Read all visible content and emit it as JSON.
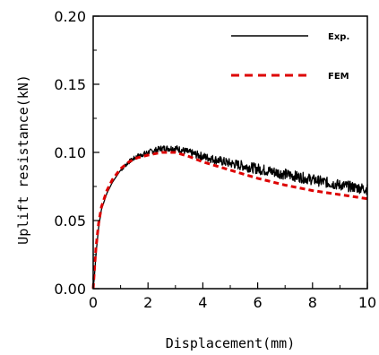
{
  "chart_data": {
    "type": "line",
    "xlabel": "Displacement(mm)",
    "ylabel": "Uplift resistance(kN)",
    "xlim": [
      0,
      10
    ],
    "ylim": [
      0,
      0.2
    ],
    "xticks": [
      0,
      2,
      4,
      6,
      8,
      10
    ],
    "xtick_labels": [
      "0",
      "2",
      "4",
      "6",
      "8",
      "10"
    ],
    "yticks": [
      0,
      0.05,
      0.1,
      0.15,
      0.2
    ],
    "ytick_labels": [
      "0.00",
      "0.05",
      "0.10",
      "0.15",
      "0.20"
    ],
    "grid": false,
    "legend": "top-right",
    "series": [
      {
        "name": "Exp.",
        "color": "#000000",
        "style": "solid",
        "noisy": true,
        "x": [
          0,
          0.05,
          0.1,
          0.2,
          0.3,
          0.5,
          0.7,
          1.0,
          1.3,
          1.6,
          2.0,
          2.5,
          3.0,
          3.5,
          4.0,
          5.0,
          6.0,
          7.0,
          8.0,
          9.0,
          10.0
        ],
        "y": [
          0,
          0.01,
          0.025,
          0.045,
          0.058,
          0.07,
          0.078,
          0.087,
          0.093,
          0.097,
          0.1,
          0.103,
          0.103,
          0.1,
          0.097,
          0.092,
          0.088,
          0.084,
          0.08,
          0.076,
          0.073
        ]
      },
      {
        "name": "FEM",
        "color": "#dd0000",
        "style": "dashed",
        "noisy": false,
        "x": [
          0,
          0.05,
          0.1,
          0.2,
          0.3,
          0.5,
          0.7,
          1.0,
          1.3,
          1.6,
          2.0,
          2.5,
          3.0,
          3.5,
          4.0,
          5.0,
          6.0,
          7.0,
          8.0,
          9.0,
          10.0
        ],
        "y": [
          0,
          0.015,
          0.03,
          0.048,
          0.06,
          0.072,
          0.08,
          0.088,
          0.093,
          0.096,
          0.098,
          0.1,
          0.1,
          0.097,
          0.093,
          0.087,
          0.081,
          0.076,
          0.072,
          0.069,
          0.066
        ]
      }
    ]
  }
}
